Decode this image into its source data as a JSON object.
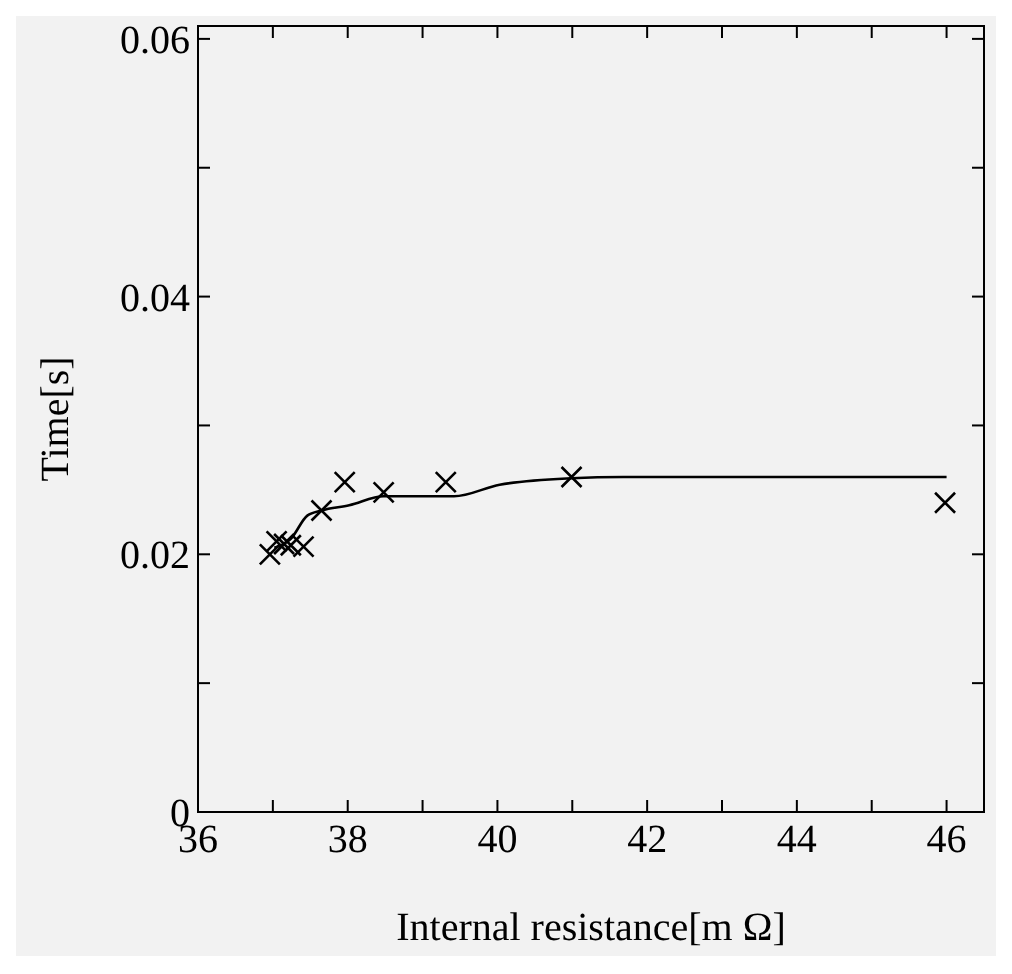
{
  "chart_data": {
    "type": "scatter",
    "xlabel": "Internal resistance[m Ω]",
    "ylabel": "Time[s]",
    "xlim": [
      36,
      46.5
    ],
    "ylim": [
      0,
      0.061
    ],
    "xticks": [
      36,
      {
        "value": 37,
        "label": null
      },
      38,
      {
        "value": 39,
        "label": null
      },
      40,
      {
        "value": 41,
        "label": null
      },
      42,
      {
        "value": 43,
        "label": null
      },
      44,
      {
        "value": 45,
        "label": null
      },
      46
    ],
    "yticks": [
      0,
      {
        "value": 0.01,
        "label": null
      },
      0.02,
      {
        "value": 0.03,
        "label": null
      },
      0.04,
      {
        "value": 0.05,
        "label": null
      },
      0.06
    ],
    "grid": false,
    "series": [
      {
        "color": "#000000",
        "marker": "cross",
        "x": [
          36.96,
          37.05,
          37.15,
          37.24,
          37.41,
          37.65,
          37.96,
          38.48,
          39.31,
          40.99,
          45.98
        ],
        "values": [
          0.02,
          0.021,
          0.0208,
          0.0207,
          0.0206,
          0.0234,
          0.0256,
          0.0248,
          0.0256,
          0.026,
          0.024
        ]
      },
      {
        "type": "line",
        "color": "#000000",
        "marker": "none",
        "line_style": "solid",
        "x": [
          37.02,
          37.24,
          37.46,
          37.65,
          38.02,
          38.48,
          38.72,
          39.42,
          40.03,
          40.99,
          41.68,
          46.0
        ],
        "values": [
          0.0205,
          0.0212,
          0.023,
          0.0234,
          0.0238,
          0.0245,
          0.0245,
          0.0245,
          0.0254,
          0.0259,
          0.026,
          0.026
        ]
      }
    ]
  }
}
